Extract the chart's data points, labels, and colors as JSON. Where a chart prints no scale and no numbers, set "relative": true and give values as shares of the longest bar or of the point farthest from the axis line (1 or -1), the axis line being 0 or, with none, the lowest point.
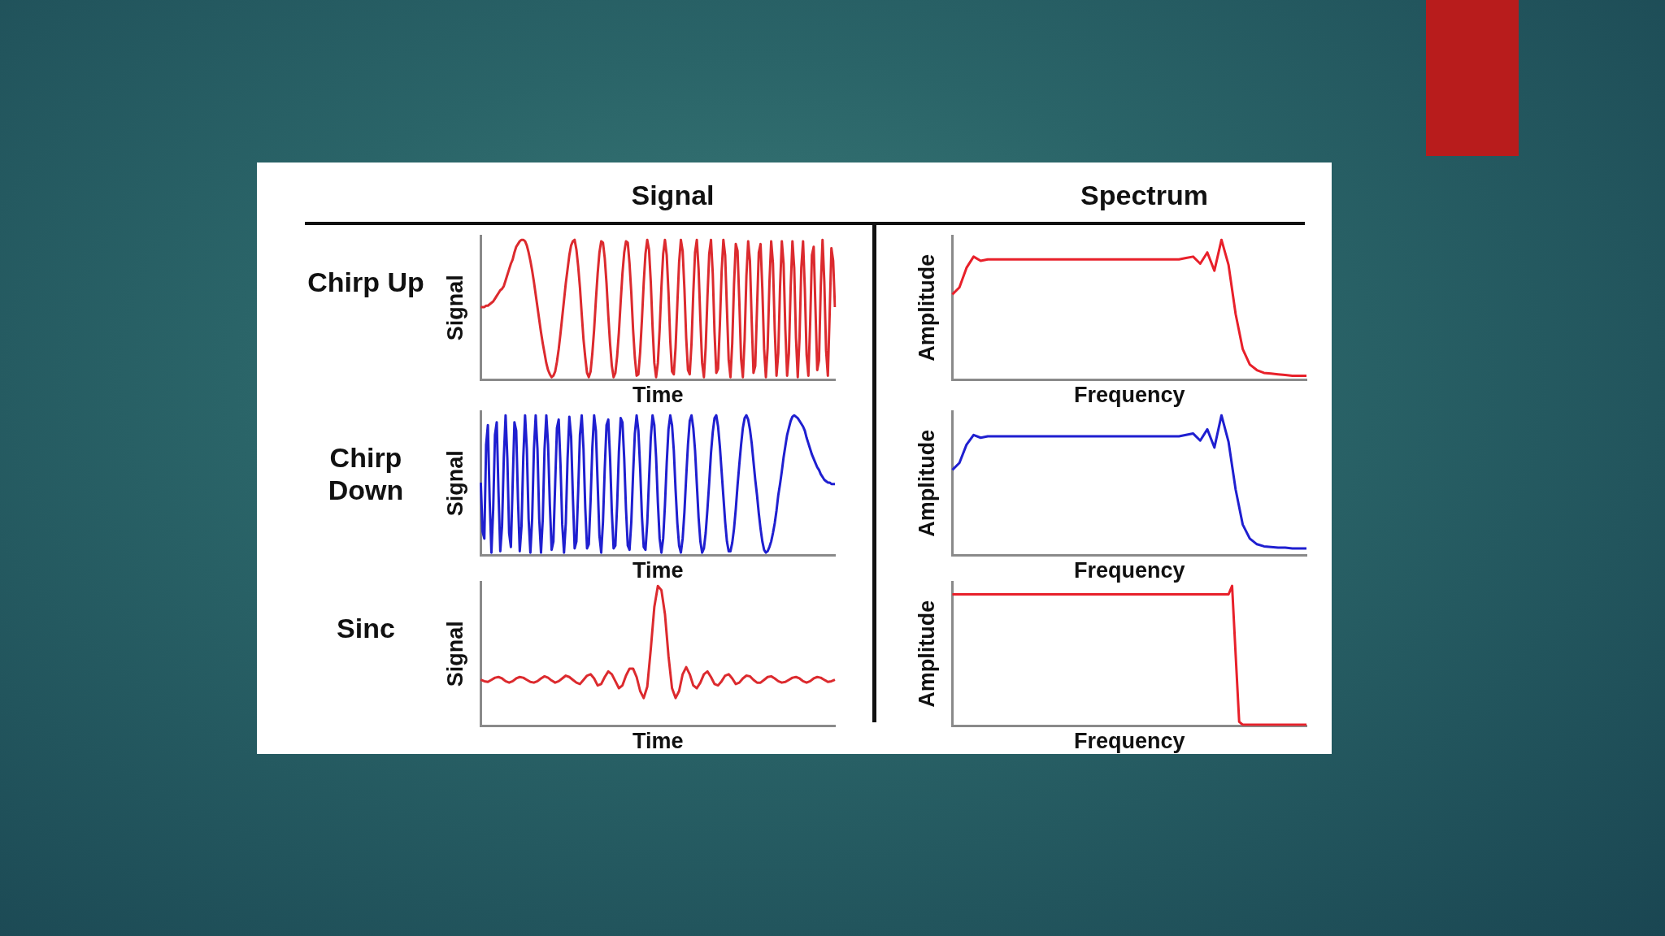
{
  "chart_data": [
    {
      "type": "line",
      "title": "Signal",
      "annotations": [
        "Chirp Up"
      ],
      "xlabel": "Time",
      "ylabel": "Signal",
      "relative": true,
      "tick_labels": false,
      "color": "#dc2a2e",
      "categories": [
        null,
        null,
        null,
        null,
        null,
        null,
        null,
        null,
        null,
        null,
        null,
        null,
        null,
        null,
        null,
        null,
        null,
        null,
        null,
        null,
        null,
        null,
        null,
        null,
        null,
        null,
        null,
        null,
        null,
        null,
        null,
        null,
        null,
        null,
        null,
        null,
        null,
        null,
        null,
        null,
        null,
        null,
        null,
        null,
        null,
        null,
        null,
        null,
        null,
        null,
        null,
        null,
        null,
        null,
        null,
        null,
        null,
        null,
        null,
        null,
        null,
        null,
        null,
        null,
        null,
        null,
        null,
        null,
        null,
        null,
        null,
        null,
        null,
        null,
        null,
        null,
        null,
        null,
        null,
        null,
        null,
        null,
        null,
        null,
        null,
        null,
        null,
        null,
        null,
        null,
        null,
        null,
        null,
        null,
        null,
        null,
        null,
        null,
        null,
        null,
        null,
        null,
        null,
        null,
        null,
        null,
        null,
        null,
        null,
        null,
        null,
        null,
        null,
        null,
        null,
        null,
        null,
        null,
        null,
        null,
        null,
        null,
        null,
        null,
        null,
        null,
        null,
        null,
        null,
        null,
        null,
        null,
        null,
        null,
        null,
        null,
        null,
        null,
        null,
        null,
        null,
        null,
        null,
        null,
        null,
        null,
        null,
        null,
        null,
        null,
        null,
        null,
        null,
        null,
        null,
        null,
        null,
        null,
        null,
        null,
        null,
        null,
        null,
        null,
        null,
        null,
        null,
        null,
        null,
        null,
        null,
        null,
        null,
        null,
        null,
        null,
        null,
        null,
        null,
        null,
        null,
        null,
        null,
        null,
        null,
        null,
        null,
        null,
        null,
        null,
        null,
        null,
        null,
        null,
        null,
        null,
        null,
        null,
        null,
        null,
        null
      ],
      "values": [
        0.52,
        0.52,
        0.52,
        0.53,
        0.53,
        0.54,
        0.55,
        0.56,
        0.58,
        0.6,
        0.62,
        0.64,
        0.65,
        0.67,
        0.71,
        0.75,
        0.79,
        0.83,
        0.86,
        0.91,
        0.95,
        0.97,
        0.99,
        1,
        1,
        0.99,
        0.96,
        0.91,
        0.85,
        0.78,
        0.7,
        0.61,
        0.52,
        0.43,
        0.34,
        0.26,
        0.19,
        0.12,
        0.07,
        0.04,
        0.02,
        0.03,
        0.06,
        0.13,
        0.22,
        0.33,
        0.45,
        0.57,
        0.69,
        0.79,
        0.89,
        0.96,
        0.99,
        1,
        0.93,
        0.81,
        0.66,
        0.47,
        0.29,
        0.16,
        0.05,
        0.02,
        0.06,
        0.19,
        0.36,
        0.57,
        0.76,
        0.91,
        0.99,
        0.98,
        0.87,
        0.69,
        0.46,
        0.26,
        0.1,
        0.02,
        0.05,
        0.17,
        0.34,
        0.56,
        0.76,
        0.91,
        0.99,
        0.98,
        0.83,
        0.62,
        0.36,
        0.16,
        0.03,
        0.04,
        0.2,
        0.43,
        0.69,
        0.9,
        1,
        0.93,
        0.7,
        0.38,
        0.12,
        0.02,
        0.12,
        0.36,
        0.66,
        0.9,
        1,
        0.89,
        0.62,
        0.28,
        0.06,
        0.04,
        0.23,
        0.54,
        0.84,
        1,
        0.92,
        0.65,
        0.3,
        0.07,
        0.04,
        0.26,
        0.62,
        0.91,
        1,
        0.79,
        0.43,
        0.12,
        0.02,
        0.23,
        0.59,
        0.9,
        1,
        0.76,
        0.34,
        0.05,
        0.08,
        0.39,
        0.77,
        1,
        0.89,
        0.51,
        0.14,
        0.02,
        0.26,
        0.68,
        0.97,
        0.92,
        0.56,
        0.15,
        0.02,
        0.29,
        0.74,
        0.99,
        0.85,
        0.42,
        0.05,
        0.1,
        0.51,
        0.91,
        0.97,
        0.65,
        0.22,
        0.02,
        0.23,
        0.69,
        0.99,
        0.83,
        0.36,
        0.03,
        0.19,
        0.66,
        0.99,
        0.83,
        0.36,
        0.03,
        0.19,
        0.66,
        0.99,
        0.8,
        0.3,
        0.02,
        0.3,
        0.8,
        0.99,
        0.65,
        0.18,
        0.03,
        0.4,
        0.89,
        0.95,
        0.51,
        0.07,
        0.14,
        0.67,
        1,
        0.7,
        0.21,
        0.03,
        0.46,
        0.94,
        0.85,
        0.52
      ]
    },
    {
      "type": "line",
      "title": "Spectrum",
      "xlabel": "Frequency",
      "ylabel": "Amplitude",
      "relative": true,
      "tick_labels": false,
      "color": "#e8202a",
      "categories": [
        null,
        null,
        null,
        null,
        null,
        null,
        null,
        null,
        null,
        null,
        null,
        null,
        null,
        null,
        null,
        null,
        null,
        null,
        null,
        null,
        null,
        null,
        null,
        null,
        null,
        null,
        null,
        null,
        null,
        null,
        null,
        null,
        null,
        null,
        null,
        null,
        null,
        null,
        null,
        null,
        null,
        null,
        null,
        null,
        null,
        null,
        null,
        null,
        null,
        null,
        null
      ],
      "values": [
        0.61,
        0.66,
        0.8,
        0.88,
        0.85,
        0.86,
        0.86,
        0.86,
        0.86,
        0.86,
        0.86,
        0.86,
        0.86,
        0.86,
        0.86,
        0.86,
        0.86,
        0.86,
        0.86,
        0.86,
        0.86,
        0.86,
        0.86,
        0.86,
        0.86,
        0.86,
        0.86,
        0.86,
        0.86,
        0.86,
        0.86,
        0.86,
        0.86,
        0.87,
        0.88,
        0.83,
        0.91,
        0.78,
        1,
        0.82,
        0.47,
        0.22,
        0.11,
        0.07,
        0.05,
        0.045,
        0.04,
        0.035,
        0.03,
        0.03,
        0.03
      ]
    },
    {
      "type": "line",
      "annotations": [
        "Chirp Down"
      ],
      "xlabel": "Time",
      "ylabel": "Signal",
      "relative": true,
      "tick_labels": false,
      "color": "#1f1fd0",
      "categories": [
        null,
        null,
        null,
        null,
        null,
        null,
        null,
        null,
        null,
        null,
        null,
        null,
        null,
        null,
        null,
        null,
        null,
        null,
        null,
        null,
        null,
        null,
        null,
        null,
        null,
        null,
        null,
        null,
        null,
        null,
        null,
        null,
        null,
        null,
        null,
        null,
        null,
        null,
        null,
        null,
        null,
        null,
        null,
        null,
        null,
        null,
        null,
        null,
        null,
        null,
        null,
        null,
        null,
        null,
        null,
        null,
        null,
        null,
        null,
        null,
        null,
        null,
        null,
        null,
        null,
        null,
        null,
        null,
        null,
        null,
        null,
        null,
        null,
        null,
        null,
        null,
        null,
        null,
        null,
        null,
        null,
        null,
        null,
        null,
        null,
        null,
        null,
        null,
        null,
        null,
        null,
        null,
        null,
        null,
        null,
        null,
        null,
        null,
        null,
        null,
        null,
        null,
        null,
        null,
        null,
        null,
        null,
        null,
        null,
        null,
        null,
        null,
        null,
        null,
        null,
        null,
        null,
        null,
        null,
        null,
        null,
        null,
        null,
        null,
        null,
        null,
        null,
        null,
        null,
        null,
        null,
        null,
        null,
        null,
        null,
        null,
        null,
        null,
        null,
        null,
        null,
        null,
        null,
        null,
        null,
        null,
        null,
        null,
        null,
        null,
        null,
        null,
        null,
        null,
        null,
        null,
        null,
        null,
        null,
        null,
        null,
        null,
        null,
        null,
        null,
        null,
        null,
        null,
        null,
        null,
        null,
        null,
        null,
        null,
        null,
        null,
        null,
        null,
        null,
        null,
        null,
        null,
        null,
        null,
        null,
        null,
        null,
        null,
        null,
        null,
        null,
        null,
        null,
        null,
        null,
        null,
        null,
        null,
        null,
        null,
        null
      ],
      "values": [
        0.52,
        0.17,
        0.12,
        0.79,
        0.93,
        0.4,
        0.02,
        0.33,
        0.86,
        0.95,
        0.45,
        0.03,
        0.21,
        0.7,
        1,
        0.69,
        0.16,
        0.06,
        0.51,
        0.95,
        0.89,
        0.4,
        0.03,
        0.21,
        0.7,
        1,
        0.76,
        0.26,
        0.02,
        0.26,
        0.76,
        1,
        0.76,
        0.26,
        0.02,
        0.26,
        0.76,
        1,
        0.79,
        0.36,
        0.04,
        0.1,
        0.51,
        0.91,
        0.97,
        0.65,
        0.22,
        0.02,
        0.23,
        0.69,
        0.99,
        0.85,
        0.42,
        0.05,
        0.1,
        0.46,
        0.86,
        1,
        0.76,
        0.34,
        0.05,
        0.08,
        0.39,
        0.77,
        1,
        0.89,
        0.51,
        0.14,
        0.02,
        0.24,
        0.62,
        0.93,
        0.97,
        0.7,
        0.31,
        0.05,
        0.07,
        0.36,
        0.74,
        0.98,
        0.95,
        0.69,
        0.33,
        0.07,
        0.04,
        0.24,
        0.58,
        0.87,
        1,
        0.89,
        0.62,
        0.28,
        0.06,
        0.04,
        0.23,
        0.54,
        0.84,
        1,
        0.93,
        0.7,
        0.38,
        0.12,
        0.02,
        0.12,
        0.36,
        0.66,
        0.9,
        1,
        0.93,
        0.75,
        0.47,
        0.23,
        0.07,
        0.02,
        0.12,
        0.31,
        0.56,
        0.79,
        0.96,
        1,
        0.91,
        0.75,
        0.51,
        0.27,
        0.1,
        0.02,
        0.05,
        0.16,
        0.33,
        0.52,
        0.73,
        0.88,
        0.98,
        1,
        0.92,
        0.78,
        0.6,
        0.42,
        0.24,
        0.1,
        0.03,
        0.03,
        0.09,
        0.19,
        0.33,
        0.5,
        0.65,
        0.79,
        0.91,
        0.98,
        1,
        0.97,
        0.9,
        0.8,
        0.67,
        0.54,
        0.43,
        0.3,
        0.19,
        0.1,
        0.04,
        0.02,
        0.03,
        0.06,
        0.1,
        0.16,
        0.23,
        0.32,
        0.43,
        0.51,
        0.6,
        0.7,
        0.78,
        0.86,
        0.91,
        0.96,
        0.99,
        1,
        0.99,
        0.98,
        0.96,
        0.94,
        0.92,
        0.89,
        0.84,
        0.8,
        0.76,
        0.72,
        0.69,
        0.66,
        0.63,
        0.61,
        0.58,
        0.56,
        0.54,
        0.53,
        0.52,
        0.52,
        0.51,
        0.51,
        0.51
      ]
    },
    {
      "type": "line",
      "xlabel": "Frequency",
      "ylabel": "Amplitude",
      "relative": true,
      "tick_labels": false,
      "color": "#1f1fd0",
      "categories": [
        null,
        null,
        null,
        null,
        null,
        null,
        null,
        null,
        null,
        null,
        null,
        null,
        null,
        null,
        null,
        null,
        null,
        null,
        null,
        null,
        null,
        null,
        null,
        null,
        null,
        null,
        null,
        null,
        null,
        null,
        null,
        null,
        null,
        null,
        null,
        null,
        null,
        null,
        null,
        null,
        null,
        null,
        null,
        null,
        null,
        null,
        null,
        null,
        null,
        null,
        null
      ],
      "values": [
        0.61,
        0.66,
        0.79,
        0.86,
        0.84,
        0.85,
        0.85,
        0.85,
        0.85,
        0.85,
        0.85,
        0.85,
        0.85,
        0.85,
        0.85,
        0.85,
        0.85,
        0.85,
        0.85,
        0.85,
        0.85,
        0.85,
        0.85,
        0.85,
        0.85,
        0.85,
        0.85,
        0.85,
        0.85,
        0.85,
        0.85,
        0.85,
        0.85,
        0.86,
        0.87,
        0.82,
        0.9,
        0.77,
        1,
        0.81,
        0.47,
        0.22,
        0.12,
        0.08,
        0.065,
        0.06,
        0.055,
        0.055,
        0.05,
        0.05,
        0.05
      ]
    },
    {
      "type": "line",
      "annotations": [
        "Sinc"
      ],
      "xlabel": "Time",
      "ylabel": "Signal",
      "relative": true,
      "tick_labels": false,
      "color": "#dc2a2e",
      "categories": [
        null,
        null,
        null,
        null,
        null,
        null,
        null,
        null,
        null,
        null,
        null,
        null,
        null,
        null,
        null,
        null,
        null,
        null,
        null,
        null,
        null,
        null,
        null,
        null,
        null,
        null,
        null,
        null,
        null,
        null,
        null,
        null,
        null,
        null,
        null,
        null,
        null,
        null,
        null,
        null,
        null,
        null,
        null,
        null,
        null,
        null,
        null,
        null,
        null,
        null,
        null,
        null,
        null,
        null,
        null,
        null,
        null,
        null,
        null,
        null,
        null,
        null,
        null,
        null,
        null,
        null,
        null,
        null,
        null,
        null,
        null,
        null,
        null,
        null,
        null,
        null,
        null,
        null,
        null,
        null,
        null,
        null,
        null,
        null,
        null,
        null,
        null,
        null,
        null,
        null,
        null,
        null,
        null,
        null,
        null,
        null,
        null,
        null,
        null,
        null,
        null
      ],
      "values": [
        0.33,
        0.32,
        0.315,
        0.33,
        0.345,
        0.35,
        0.34,
        0.32,
        0.31,
        0.32,
        0.34,
        0.35,
        0.345,
        0.33,
        0.315,
        0.31,
        0.32,
        0.34,
        0.355,
        0.345,
        0.325,
        0.31,
        0.32,
        0.34,
        0.36,
        0.35,
        0.33,
        0.31,
        0.3,
        0.33,
        0.36,
        0.37,
        0.34,
        0.29,
        0.3,
        0.35,
        0.39,
        0.37,
        0.32,
        0.27,
        0.29,
        0.36,
        0.41,
        0.41,
        0.35,
        0.25,
        0.2,
        0.28,
        0.55,
        0.85,
        1,
        0.97,
        0.8,
        0.5,
        0.27,
        0.2,
        0.25,
        0.37,
        0.42,
        0.37,
        0.29,
        0.27,
        0.31,
        0.37,
        0.39,
        0.35,
        0.3,
        0.29,
        0.32,
        0.36,
        0.37,
        0.34,
        0.3,
        0.31,
        0.34,
        0.36,
        0.355,
        0.33,
        0.31,
        0.31,
        0.33,
        0.35,
        0.355,
        0.34,
        0.32,
        0.31,
        0.315,
        0.33,
        0.345,
        0.35,
        0.34,
        0.32,
        0.31,
        0.32,
        0.34,
        0.35,
        0.345,
        0.33,
        0.315,
        0.32,
        0.33
      ]
    },
    {
      "type": "line",
      "xlabel": "Frequency",
      "ylabel": "Amplitude",
      "relative": true,
      "tick_labels": false,
      "color": "#e8202a",
      "categories": [
        null,
        null,
        null,
        null,
        null,
        null,
        null,
        null,
        null,
        null,
        null,
        null,
        null,
        null,
        null,
        null,
        null,
        null,
        null,
        null,
        null,
        null,
        null,
        null,
        null,
        null,
        null,
        null,
        null,
        null,
        null,
        null,
        null,
        null,
        null,
        null,
        null,
        null,
        null,
        null,
        null,
        null,
        null,
        null,
        null,
        null,
        null,
        null,
        null,
        null,
        null,
        null,
        null,
        null,
        null,
        null,
        null,
        null,
        null,
        null,
        null,
        null,
        null,
        null,
        null,
        null,
        null,
        null,
        null,
        null,
        null,
        null,
        null,
        null,
        null,
        null,
        null,
        null,
        null,
        null,
        null,
        null,
        null,
        null,
        null,
        null,
        null,
        null,
        null,
        null,
        null,
        null,
        null,
        null,
        null,
        null,
        null,
        null,
        null,
        null,
        null
      ],
      "values": [
        0.94,
        0.94,
        0.94,
        0.94,
        0.94,
        0.94,
        0.94,
        0.94,
        0.94,
        0.94,
        0.94,
        0.94,
        0.94,
        0.94,
        0.94,
        0.94,
        0.94,
        0.94,
        0.94,
        0.94,
        0.94,
        0.94,
        0.94,
        0.94,
        0.94,
        0.94,
        0.94,
        0.94,
        0.94,
        0.94,
        0.94,
        0.94,
        0.94,
        0.94,
        0.94,
        0.94,
        0.94,
        0.94,
        0.94,
        0.94,
        0.94,
        0.94,
        0.94,
        0.94,
        0.94,
        0.94,
        0.94,
        0.94,
        0.94,
        0.94,
        0.94,
        0.94,
        0.94,
        0.94,
        0.94,
        0.94,
        0.94,
        0.94,
        0.94,
        0.94,
        0.94,
        0.94,
        0.94,
        0.94,
        0.94,
        0.94,
        0.94,
        0.94,
        0.94,
        0.94,
        0.94,
        0.94,
        0.94,
        0.94,
        0.94,
        0.94,
        0.94,
        0.94,
        0.94,
        1,
        0.51,
        0.03,
        0.01,
        0.01,
        0.01,
        0.01,
        0.01,
        0.01,
        0.01,
        0.01,
        0.01,
        0.01,
        0.01,
        0.01,
        0.01,
        0.01,
        0.01,
        0.01,
        0.01,
        0.01,
        0.01
      ]
    }
  ]
}
